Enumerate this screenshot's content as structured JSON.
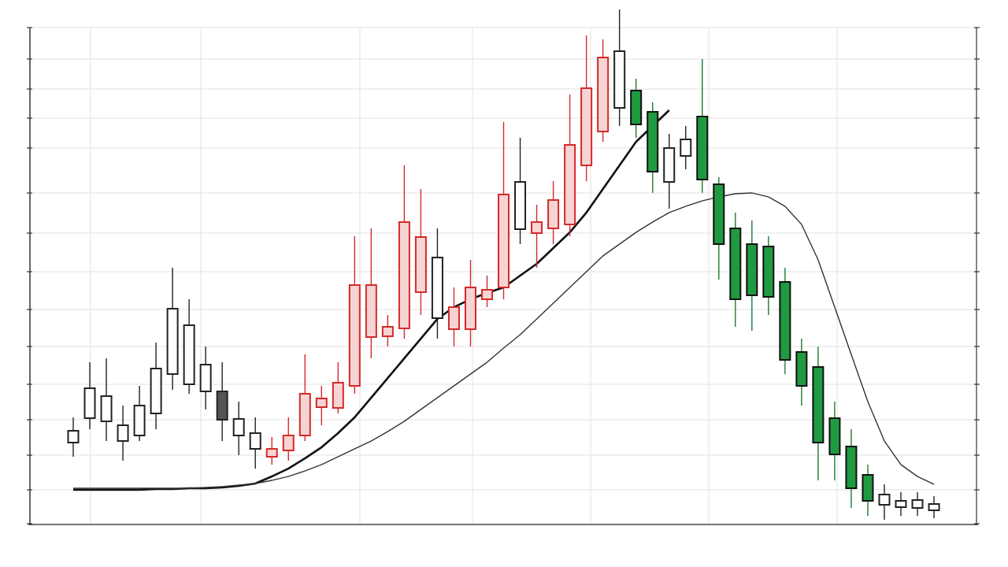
{
  "chart_data": {
    "type": "candlestick",
    "ylim": [
      0,
      630
    ],
    "yticks": [
      0,
      43,
      87,
      132,
      177,
      225,
      272,
      320,
      369,
      420,
      477,
      515,
      552,
      590,
      630
    ],
    "grid": true,
    "open": [
      103,
      134,
      130,
      105,
      112,
      140,
      190,
      177,
      168,
      168,
      133,
      115,
      85,
      93,
      112,
      148,
      147,
      175,
      237,
      238,
      248,
      294,
      261,
      247,
      247,
      285,
      300,
      374,
      369,
      375,
      380,
      455,
      498,
      528,
      550,
      523,
      477,
      467,
      517,
      431,
      375,
      355,
      352,
      307,
      218,
      199,
      134,
      98,
      62,
      37,
      29,
      30,
      25
    ],
    "high": [
      135,
      205,
      210,
      150,
      175,
      230,
      325,
      285,
      225,
      205,
      155,
      135,
      110,
      135,
      215,
      175,
      205,
      365,
      375,
      265,
      455,
      425,
      375,
      300,
      335,
      315,
      510,
      490,
      405,
      435,
      545,
      620,
      615,
      653,
      565,
      535,
      495,
      505,
      590,
      440,
      395,
      385,
      365,
      325,
      235,
      225,
      155,
      120,
      75,
      50,
      40,
      40,
      35
    ],
    "low": [
      85,
      120,
      105,
      80,
      105,
      120,
      170,
      165,
      145,
      105,
      87,
      70,
      75,
      80,
      105,
      125,
      140,
      165,
      210,
      225,
      235,
      265,
      235,
      225,
      225,
      275,
      285,
      355,
      325,
      355,
      365,
      435,
      485,
      505,
      490,
      420,
      400,
      450,
      420,
      310,
      250,
      245,
      265,
      190,
      150,
      55,
      55,
      20,
      10,
      5,
      10,
      10,
      7
    ],
    "close": [
      118,
      172,
      162,
      125,
      150,
      197,
      273,
      252,
      202,
      132,
      112,
      95,
      95,
      112,
      165,
      159,
      179,
      303,
      303,
      250,
      383,
      364,
      338,
      275,
      300,
      297,
      418,
      434,
      383,
      411,
      481,
      553,
      592,
      600,
      507,
      447,
      434,
      488,
      437,
      355,
      285,
      290,
      288,
      208,
      175,
      103,
      88,
      45,
      29,
      24,
      21,
      20,
      17
    ],
    "colors": [
      "#222222",
      "#222222",
      "#222222",
      "#222222",
      "#222222",
      "#222222",
      "#222222",
      "#222222",
      "#222222",
      "#222222",
      "#222222",
      "#222222",
      "#d42a2a",
      "#d42a2a",
      "#d42a2a",
      "#d42a2a",
      "#d42a2a",
      "#d42a2a",
      "#d42a2a",
      "#d42a2a",
      "#d42a2a",
      "#d42a2a",
      "#222222",
      "#d42a2a",
      "#d42a2a",
      "#d42a2a",
      "#d42a2a",
      "#222222",
      "#d42a2a",
      "#d42a2a",
      "#d42a2a",
      "#d42a2a",
      "#d42a2a",
      "#222222",
      "#1e7a34",
      "#1e7a34",
      "#222222",
      "#222222",
      "#1e7a34",
      "#1e7a34",
      "#1e7a34",
      "#1e7a34",
      "#1e7a34",
      "#1e7a34",
      "#1e7a34",
      "#1e7a34",
      "#1e7a34",
      "#1e7a34",
      "#1e7a34",
      "#222222",
      "#222222",
      "#222222",
      "#222222"
    ],
    "fill_colors": [
      "#ffffff",
      "#ffffff",
      "#ffffff",
      "#ffffff",
      "#ffffff",
      "#ffffff",
      "#ffffff",
      "#ffffff",
      "#ffffff",
      "#555555",
      "#ffffff",
      "#ffffff",
      "#f6d4d4",
      "#f6d4d4",
      "#f6d4d4",
      "#f6d4d4",
      "#f6d4d4",
      "#f6d4d4",
      "#f6d4d4",
      "#f6d4d4",
      "#f6d4d4",
      "#f6d4d4",
      "#ffffff",
      "#f6d4d4",
      "#f6d4d4",
      "#f6d4d4",
      "#f6d4d4",
      "#ffffff",
      "#f6d4d4",
      "#f6d4d4",
      "#f6d4d4",
      "#f6d4d4",
      "#f6d4d4",
      "#ffffff",
      "#1f9a40",
      "#1f9a40",
      "#ffffff",
      "#ffffff",
      "#1f9a40",
      "#1f9a40",
      "#1f9a40",
      "#1f9a40",
      "#1f9a40",
      "#1f9a40",
      "#1f9a40",
      "#1f9a40",
      "#1f9a40",
      "#1f9a40",
      "#1f9a40",
      "#ffffff",
      "#ffffff",
      "#ffffff",
      "#ffffff"
    ],
    "series": [
      {
        "color": "#111111",
        "values": [
          43,
          43,
          43,
          43,
          43,
          44,
          44,
          45,
          45,
          46,
          48,
          51,
          60,
          70,
          83,
          97,
          115,
          135,
          160,
          185,
          210,
          235,
          260,
          275,
          285,
          293,
          300,
          315,
          330,
          350,
          370,
          395,
          425,
          455,
          485,
          505,
          525,
          null,
          null,
          null,
          null,
          null,
          null,
          null,
          null,
          null,
          null,
          null,
          null,
          null,
          null,
          null,
          null
        ]
      },
      {
        "color": "#333333",
        "values": [
          45,
          45,
          45,
          45,
          45,
          45,
          45,
          45,
          46,
          47,
          49,
          51,
          55,
          60,
          67,
          75,
          85,
          95,
          105,
          117,
          130,
          145,
          160,
          175,
          190,
          205,
          223,
          240,
          260,
          280,
          300,
          320,
          340,
          355,
          370,
          383,
          395,
          403,
          410,
          415,
          419,
          420,
          415,
          403,
          380,
          335,
          275,
          215,
          155,
          105,
          75,
          60,
          50
        ]
      }
    ]
  }
}
